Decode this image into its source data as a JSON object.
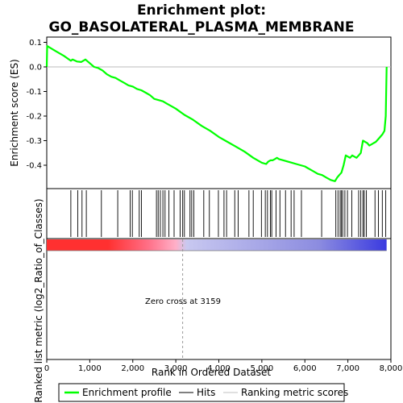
{
  "chart_data": {
    "type": "line",
    "title_line1": "Enrichment plot:",
    "title_line2": "GO_BASOLATERAL_PLASMA_MEMBRANE",
    "ylabel_top": "Enrichment score (ES)",
    "ylabel_bottom": "Ranked list metric (log2_Ratio_of_Classes)",
    "xlabel": "Rank in Ordered Dataset",
    "xlim": [
      0,
      8000
    ],
    "ylim": [
      -0.5,
      0.1
    ],
    "x_ticks": [
      0,
      1000,
      2000,
      3000,
      4000,
      5000,
      6000,
      7000,
      8000
    ],
    "x_tick_labels": [
      "0",
      "1,000",
      "2,000",
      "3,000",
      "4,000",
      "5,000",
      "6,000",
      "7,000",
      "8,000"
    ],
    "y_ticks": [
      0.1,
      0.0,
      -0.1,
      -0.2,
      -0.3,
      -0.4
    ],
    "y_tick_labels": [
      "0.1",
      "0.0",
      "-0.1",
      "-0.2",
      "-0.3",
      "-0.4"
    ],
    "zero_cross_label": "Zero cross at 3159",
    "zero_cross_rank": 3159,
    "max_rank": 7900,
    "series": [
      {
        "name": "Enrichment profile",
        "color": "#00ff00",
        "x": [
          0,
          10,
          200,
          400,
          560,
          600,
          700,
          800,
          900,
          1000,
          1100,
          1200,
          1300,
          1400,
          1500,
          1600,
          1700,
          1800,
          1900,
          2000,
          2100,
          2200,
          2300,
          2400,
          2500,
          2600,
          2700,
          2800,
          2900,
          3000,
          3200,
          3400,
          3600,
          3800,
          4000,
          4200,
          4400,
          4600,
          4800,
          5000,
          5100,
          5150,
          5200,
          5250,
          5300,
          5350,
          5400,
          5500,
          5600,
          5700,
          5800,
          5900,
          6000,
          6100,
          6200,
          6300,
          6400,
          6500,
          6600,
          6700,
          6750,
          6800,
          6850,
          6900,
          6950,
          7000,
          7050,
          7100,
          7150,
          7200,
          7250,
          7300,
          7350,
          7400,
          7450,
          7500,
          7550,
          7600,
          7650,
          7700,
          7750,
          7800,
          7850,
          7880,
          7900
        ],
        "y": [
          0.0,
          0.085,
          0.065,
          0.045,
          0.025,
          0.03,
          0.022,
          0.02,
          0.03,
          0.015,
          0.0,
          -0.005,
          -0.015,
          -0.03,
          -0.04,
          -0.045,
          -0.055,
          -0.065,
          -0.075,
          -0.08,
          -0.09,
          -0.095,
          -0.105,
          -0.115,
          -0.13,
          -0.135,
          -0.14,
          -0.15,
          -0.16,
          -0.17,
          -0.195,
          -0.215,
          -0.24,
          -0.26,
          -0.285,
          -0.305,
          -0.325,
          -0.345,
          -0.37,
          -0.39,
          -0.395,
          -0.385,
          -0.38,
          -0.38,
          -0.375,
          -0.37,
          -0.375,
          -0.38,
          -0.385,
          -0.39,
          -0.395,
          -0.4,
          -0.405,
          -0.415,
          -0.425,
          -0.435,
          -0.44,
          -0.45,
          -0.46,
          -0.465,
          -0.45,
          -0.44,
          -0.43,
          -0.4,
          -0.36,
          -0.365,
          -0.37,
          -0.36,
          -0.365,
          -0.37,
          -0.36,
          -0.35,
          -0.3,
          -0.305,
          -0.31,
          -0.32,
          -0.315,
          -0.31,
          -0.305,
          -0.295,
          -0.285,
          -0.275,
          -0.26,
          -0.2,
          0.0
        ]
      }
    ],
    "hits": [
      560,
      720,
      820,
      920,
      1270,
      1650,
      1940,
      1990,
      2150,
      2200,
      2550,
      2590,
      2640,
      2700,
      2750,
      2840,
      2960,
      3100,
      3160,
      3200,
      3330,
      3370,
      3420,
      3650,
      3780,
      3990,
      4120,
      4180,
      4370,
      4450,
      4700,
      4800,
      4990,
      5080,
      5130,
      5200,
      5230,
      5330,
      5420,
      5550,
      5680,
      5750,
      5920,
      6390,
      6720,
      6770,
      6820,
      6850,
      6880,
      6930,
      6990,
      7090,
      7250,
      7300,
      7350,
      7380,
      7430,
      7630,
      7710,
      7800,
      7880
    ],
    "metric_colors": {
      "positive_strong": "#ff3030",
      "positive_weak": "#ffb0c8",
      "negative_weak": "#c8c8f0",
      "negative_strong": "#3a3ae0"
    },
    "legend": [
      {
        "label": "Enrichment profile",
        "color": "#00ff00"
      },
      {
        "label": "Hits",
        "color": "#000000"
      },
      {
        "label": "Ranking metric scores",
        "color": "#c0c0c0"
      }
    ],
    "legend_position": "bottom",
    "grid": false
  }
}
